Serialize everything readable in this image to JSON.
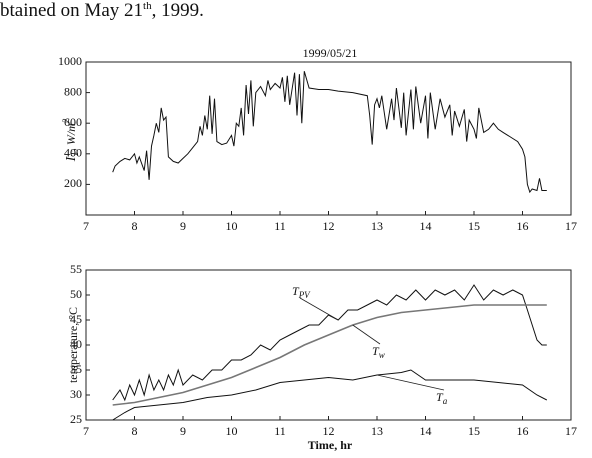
{
  "caption": [
    "btained on May 21",
    "th",
    ", 1999."
  ],
  "chart_data": [
    {
      "type": "line",
      "title": "1999/05/21",
      "y_label": [
        "I",
        "T",
        ",  W/m",
        "2"
      ],
      "xlim": [
        7,
        17
      ],
      "xticks": [
        7,
        8,
        9,
        10,
        11,
        12,
        13,
        14,
        15,
        16,
        17
      ],
      "ylim": [
        0,
        1000
      ],
      "yticks": [
        200,
        400,
        600,
        800,
        1000
      ],
      "series": [
        {
          "color": "#111111",
          "x": [
            7.55,
            7.6,
            7.7,
            7.8,
            7.9,
            8.0,
            8.05,
            8.1,
            8.2,
            8.25,
            8.3,
            8.35,
            8.4,
            8.45,
            8.5,
            8.55,
            8.6,
            8.65,
            8.7,
            8.8,
            8.9,
            9.0,
            9.1,
            9.2,
            9.3,
            9.35,
            9.4,
            9.45,
            9.5,
            9.55,
            9.6,
            9.65,
            9.7,
            9.8,
            9.9,
            10.0,
            10.05,
            10.1,
            10.15,
            10.2,
            10.25,
            10.3,
            10.35,
            10.4,
            10.45,
            10.5,
            10.6,
            10.7,
            10.75,
            10.8,
            10.9,
            11.0,
            11.05,
            11.1,
            11.15,
            11.2,
            11.3,
            11.35,
            11.4,
            11.45,
            11.5,
            11.6,
            11.8,
            12.0,
            12.2,
            12.5,
            12.8,
            12.85,
            12.9,
            12.95,
            13.0,
            13.05,
            13.1,
            13.2,
            13.3,
            13.35,
            13.4,
            13.5,
            13.55,
            13.6,
            13.7,
            13.75,
            13.8,
            13.9,
            14.0,
            14.05,
            14.1,
            14.2,
            14.3,
            14.4,
            14.5,
            14.55,
            14.6,
            14.7,
            14.8,
            14.85,
            14.9,
            15.0,
            15.05,
            15.1,
            15.2,
            15.3,
            15.4,
            15.5,
            15.6,
            15.7,
            15.8,
            15.9,
            16.0,
            16.05,
            16.1,
            16.15,
            16.2,
            16.3,
            16.35,
            16.4,
            16.5
          ],
          "values": [
            280,
            320,
            350,
            370,
            360,
            400,
            340,
            380,
            290,
            420,
            230,
            450,
            520,
            600,
            540,
            700,
            620,
            640,
            380,
            350,
            340,
            370,
            400,
            440,
            480,
            580,
            520,
            650,
            560,
            780,
            530,
            760,
            480,
            460,
            470,
            520,
            450,
            600,
            580,
            700,
            520,
            850,
            660,
            880,
            580,
            800,
            840,
            780,
            880,
            820,
            860,
            830,
            900,
            740,
            910,
            720,
            930,
            650,
            920,
            600,
            940,
            830,
            820,
            820,
            810,
            800,
            780,
            650,
            460,
            720,
            760,
            700,
            780,
            560,
            760,
            620,
            830,
            570,
            800,
            520,
            820,
            560,
            840,
            600,
            780,
            500,
            800,
            560,
            760,
            640,
            720,
            520,
            680,
            580,
            690,
            480,
            620,
            560,
            500,
            700,
            540,
            560,
            600,
            560,
            540,
            520,
            500,
            480,
            430,
            380,
            200,
            150,
            170,
            160,
            240,
            160,
            160
          ]
        }
      ]
    },
    {
      "type": "line",
      "x_label": "Time, hr",
      "y_label": "temperature, °C",
      "xlim": [
        7,
        17
      ],
      "xticks": [
        7,
        8,
        9,
        10,
        11,
        12,
        13,
        14,
        15,
        16,
        17
      ],
      "ylim": [
        25,
        55
      ],
      "yticks": [
        25,
        30,
        35,
        40,
        45,
        50,
        55
      ],
      "series": [
        {
          "name": "T",
          "sub": "PV",
          "color": "#111111",
          "x": [
            7.55,
            7.7,
            7.8,
            7.9,
            8.0,
            8.1,
            8.2,
            8.3,
            8.4,
            8.5,
            8.6,
            8.7,
            8.8,
            8.9,
            9.0,
            9.2,
            9.4,
            9.6,
            9.8,
            10.0,
            10.2,
            10.4,
            10.6,
            10.8,
            11.0,
            11.2,
            11.4,
            11.6,
            11.8,
            12.0,
            12.2,
            12.4,
            12.6,
            12.8,
            13.0,
            13.2,
            13.4,
            13.6,
            13.8,
            14.0,
            14.2,
            14.4,
            14.6,
            14.8,
            15.0,
            15.2,
            15.4,
            15.6,
            15.8,
            16.0,
            16.1,
            16.2,
            16.3,
            16.4,
            16.5
          ],
          "values": [
            29,
            31,
            29,
            32,
            30,
            33,
            30,
            34,
            31,
            33,
            31,
            34,
            32,
            35,
            32,
            34,
            33,
            35,
            35,
            37,
            37,
            38,
            40,
            39,
            41,
            42,
            43,
            44,
            44,
            46,
            45,
            47,
            47,
            48,
            49,
            48,
            50,
            49,
            51,
            49,
            51,
            50,
            51,
            49,
            52,
            49,
            51,
            50,
            51,
            50,
            47,
            44,
            41,
            40,
            40
          ]
        },
        {
          "name": "T",
          "sub": "w",
          "color": "#777777",
          "x": [
            7.55,
            8,
            8.5,
            9,
            9.5,
            10,
            10.5,
            11,
            11.5,
            12,
            12.5,
            13,
            13.5,
            14,
            14.5,
            15,
            15.5,
            16,
            16.5
          ],
          "values": [
            28,
            28.5,
            29.5,
            30.5,
            32,
            33.5,
            35.5,
            37.5,
            40,
            42,
            44,
            45.5,
            46.5,
            47,
            47.5,
            48,
            48,
            48,
            48
          ]
        },
        {
          "name": "T",
          "sub": "a",
          "color": "#111111",
          "x": [
            7.55,
            7.8,
            8,
            8.5,
            9,
            9.5,
            10,
            10.5,
            11,
            11.5,
            12,
            12.5,
            13,
            13.5,
            13.7,
            14,
            14.5,
            15,
            15.5,
            16,
            16.3,
            16.5
          ],
          "values": [
            25,
            26.5,
            27.5,
            28,
            28.5,
            29.5,
            30,
            31,
            32.5,
            33,
            33.5,
            33,
            34,
            34.5,
            35,
            33,
            33,
            33,
            32.5,
            32,
            30,
            29
          ]
        }
      ]
    }
  ]
}
